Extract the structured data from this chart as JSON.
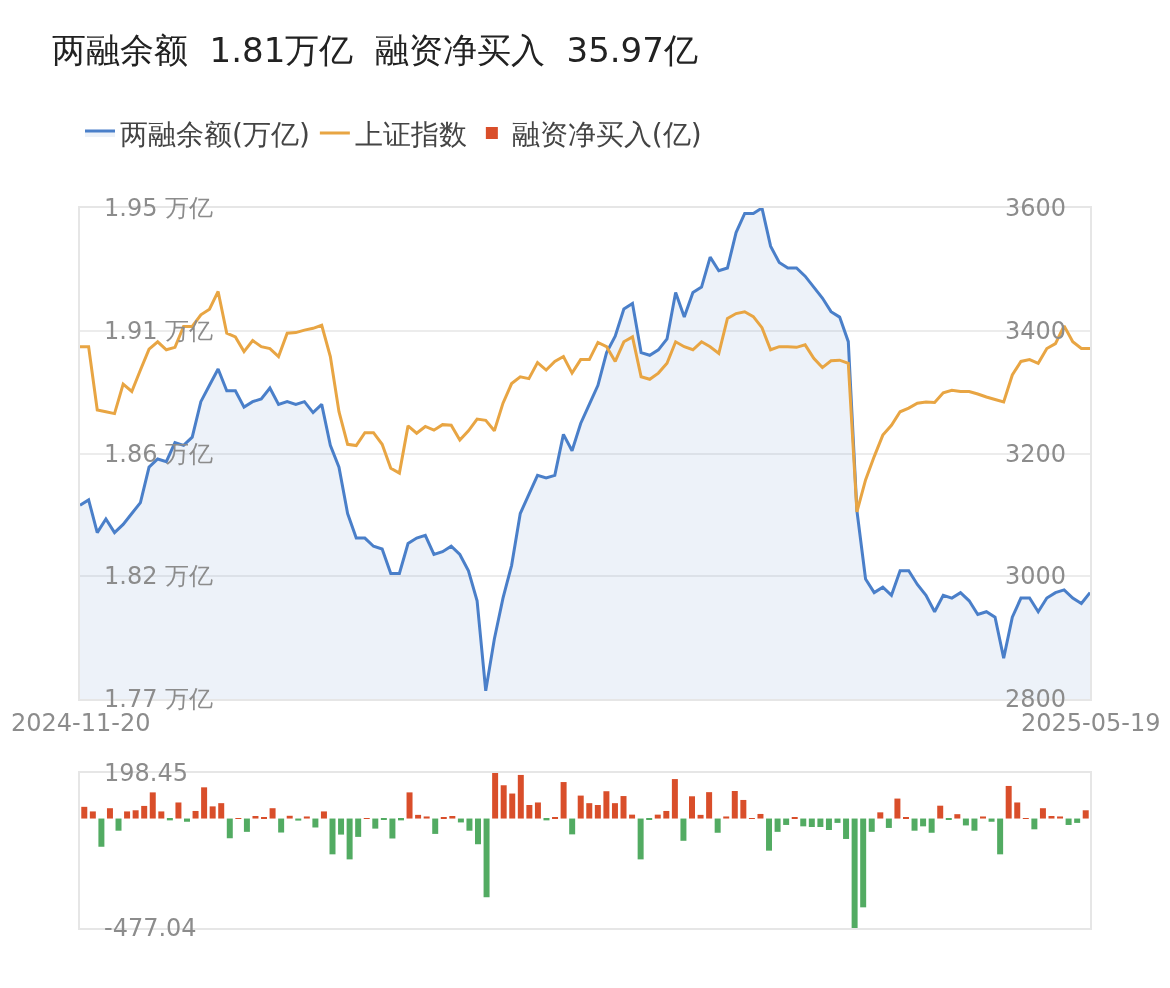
{
  "chart_data": [
    {
      "type": "line",
      "title": "两融余额  1.81万亿  融资净买入  35.97亿",
      "categories": [
        "2024-11-20",
        null,
        null,
        null,
        null,
        null,
        null,
        null,
        null,
        null,
        null,
        null,
        null,
        null,
        null,
        null,
        null,
        null,
        null,
        null,
        null,
        null,
        null,
        null,
        null,
        null,
        null,
        null,
        null,
        null,
        null,
        null,
        null,
        null,
        null,
        null,
        null,
        null,
        null,
        null,
        null,
        null,
        null,
        null,
        null,
        null,
        null,
        null,
        null,
        null,
        null,
        null,
        null,
        null,
        null,
        null,
        null,
        null,
        null,
        null,
        null,
        null,
        null,
        null,
        null,
        null,
        null,
        null,
        null,
        null,
        null,
        null,
        null,
        null,
        null,
        null,
        null,
        null,
        null,
        null,
        null,
        null,
        null,
        null,
        null,
        null,
        null,
        null,
        null,
        null,
        null,
        null,
        null,
        null,
        null,
        null,
        null,
        null,
        null,
        null,
        null,
        null,
        null,
        null,
        null,
        null,
        null,
        null,
        null,
        null,
        null,
        null,
        null,
        null,
        null,
        null,
        null,
        "2025-05-19"
      ],
      "series": [
        {
          "name": "两融余额(万亿)",
          "type": "area",
          "color": "#4a7fc9",
          "values": [
            1.841,
            1.843,
            1.831,
            1.836,
            1.831,
            1.834,
            1.838,
            1.842,
            1.855,
            1.858,
            1.857,
            1.864,
            1.863,
            1.866,
            1.879,
            1.885,
            1.891,
            1.883,
            1.883,
            1.877,
            1.879,
            1.88,
            1.884,
            1.878,
            1.879,
            1.878,
            1.879,
            1.875,
            1.878,
            1.863,
            1.855,
            1.838,
            1.829,
            1.829,
            1.826,
            1.825,
            1.816,
            1.816,
            1.827,
            1.829,
            1.83,
            1.823,
            1.824,
            1.826,
            1.823,
            1.817,
            1.806,
            1.773,
            1.792,
            1.807,
            1.819,
            1.838,
            1.845,
            1.852,
            1.851,
            1.852,
            1.867,
            1.861,
            1.871,
            1.878,
            1.885,
            1.897,
            1.903,
            1.913,
            1.915,
            1.897,
            1.896,
            1.898,
            1.902,
            1.919,
            1.91,
            1.919,
            1.921,
            1.932,
            1.927,
            1.928,
            1.941,
            1.948,
            1.948,
            1.95,
            1.936,
            1.93,
            1.928,
            1.928,
            1.925,
            1.921,
            1.917,
            1.912,
            1.91,
            1.901,
            1.839,
            1.814,
            1.809,
            1.811,
            1.808,
            1.817,
            1.817,
            1.812,
            1.808,
            1.802,
            1.808,
            1.807,
            1.809,
            1.806,
            1.801,
            1.802,
            1.8,
            1.785,
            1.8,
            1.807,
            1.807,
            1.802,
            1.807,
            1.809,
            1.81,
            1.807,
            1.805,
            1.809
          ]
        },
        {
          "name": "上证指数",
          "type": "line",
          "axis": "y2",
          "color": "#e8a543",
          "values": [
            3374,
            3374,
            3271,
            3268,
            3265,
            3313,
            3301,
            3336,
            3370,
            3382,
            3369,
            3373,
            3407,
            3407,
            3426,
            3435,
            3464,
            3396,
            3390,
            3366,
            3384,
            3374,
            3371,
            3358,
            3396,
            3397,
            3401,
            3404,
            3409,
            3358,
            3268,
            3215,
            3213,
            3234,
            3234,
            3215,
            3176,
            3168,
            3245,
            3233,
            3244,
            3238,
            3247,
            3246,
            3222,
            3237,
            3256,
            3254,
            3237,
            3282,
            3314,
            3325,
            3322,
            3348,
            3336,
            3350,
            3358,
            3331,
            3353,
            3353,
            3381,
            3374,
            3350,
            3382,
            3390,
            3325,
            3321,
            3331,
            3347,
            3382,
            3374,
            3369,
            3382,
            3374,
            3363,
            3420,
            3428,
            3431,
            3423,
            3405,
            3369,
            3374,
            3374,
            3373,
            3377,
            3355,
            3340,
            3351,
            3352,
            3347,
            3105,
            3157,
            3195,
            3230,
            3246,
            3268,
            3274,
            3282,
            3284,
            3283,
            3299,
            3303,
            3301,
            3301,
            3297,
            3292,
            3288,
            3284,
            3328,
            3350,
            3353,
            3347,
            3371,
            3379,
            3408,
            3382,
            3371,
            3371
          ]
        }
      ],
      "ylim": [
        1.77,
        1.95
      ],
      "yticks": [
        {
          "value": 1.95,
          "label": "1.95 万亿"
        },
        {
          "value": 1.905,
          "label": "1.91 万亿"
        },
        {
          "value": 1.86,
          "label": "1.86 万亿"
        },
        {
          "value": 1.815,
          "label": "1.82 万亿"
        },
        {
          "value": 1.77,
          "label": "1.77 万亿"
        }
      ],
      "y2lim": [
        2800,
        3600
      ],
      "y2ticks": [
        2800,
        3000,
        3200,
        3400,
        3600
      ],
      "grid": "y",
      "legend": "top left",
      "marker": "none",
      "line_style": "solid"
    },
    {
      "type": "bar",
      "categories": [
        null,
        null,
        null,
        null,
        null,
        null,
        null,
        null,
        null,
        null,
        null,
        null,
        null,
        null,
        null,
        null,
        null,
        null,
        null,
        null,
        null,
        null,
        null,
        null,
        null,
        null,
        null,
        null,
        null,
        null,
        null,
        null,
        null,
        null,
        null,
        null,
        null,
        null,
        null,
        null,
        null,
        null,
        null,
        null,
        null,
        null,
        null,
        null,
        null,
        null,
        null,
        null,
        null,
        null,
        null,
        null,
        null,
        null,
        null,
        null,
        null,
        null,
        null,
        null,
        null,
        null,
        null,
        null,
        null,
        null,
        null,
        null,
        null,
        null,
        null,
        null,
        null,
        null,
        null,
        null,
        null,
        null,
        null,
        null,
        null,
        null,
        null,
        null,
        null,
        null,
        null,
        null,
        null,
        null,
        null,
        null,
        null,
        null,
        null,
        null,
        null,
        null,
        null,
        null,
        null,
        null,
        null,
        null,
        null,
        null,
        null,
        null,
        null,
        null,
        null,
        null,
        null,
        null
      ],
      "series": [
        {
          "name": "融资净买入(亿)",
          "values": [
            51,
            31,
            -123,
            45,
            -53,
            31,
            36,
            55,
            114,
            31,
            -8,
            70,
            -14,
            33,
            136,
            53,
            67,
            -86,
            2,
            -58,
            11,
            6,
            45,
            -61,
            12,
            -9,
            9,
            -39,
            31,
            -156,
            -70,
            -178,
            -80,
            2,
            -44,
            -3,
            -87,
            -8,
            114,
            16,
            9,
            -67,
            6,
            11,
            -17,
            -53,
            -112,
            -343,
            198.45,
            145,
            109,
            190,
            59,
            70,
            -8,
            5,
            159,
            -69,
            100,
            67,
            59,
            119,
            67,
            98,
            17,
            -178,
            -6,
            17,
            33,
            172,
            -97,
            97,
            16,
            115,
            -62,
            9,
            120,
            81,
            2,
            20,
            -140,
            -58,
            -28,
            5,
            -34,
            -37,
            -37,
            -50,
            -19,
            -89,
            -477.04,
            -387,
            -58,
            27,
            -41,
            87,
            3,
            -53,
            -34,
            -62,
            56,
            -5,
            19,
            -30,
            -53,
            9,
            -14,
            -156,
            142,
            70,
            1,
            -47,
            45,
            11,
            9,
            -28,
            -19,
            35.97
          ],
          "colors": [
            "#d94e2a",
            "#d94e2a",
            "#52ab62",
            "#d94e2a",
            "#52ab62",
            "#d94e2a",
            "#d94e2a",
            "#d94e2a",
            "#d94e2a",
            "#d94e2a",
            "#52ab62",
            "#d94e2a",
            "#52ab62",
            "#d94e2a",
            "#d94e2a",
            "#d94e2a",
            "#d94e2a",
            "#52ab62",
            "#d94e2a",
            "#52ab62",
            "#d94e2a",
            "#d94e2a",
            "#d94e2a",
            "#52ab62",
            "#d94e2a",
            "#52ab62",
            "#d94e2a",
            "#52ab62",
            "#d94e2a",
            "#52ab62",
            "#52ab62",
            "#52ab62",
            "#52ab62",
            "#d94e2a",
            "#52ab62",
            "#52ab62",
            "#52ab62",
            "#52ab62",
            "#d94e2a",
            "#d94e2a",
            "#d94e2a",
            "#52ab62",
            "#d94e2a",
            "#d94e2a",
            "#52ab62",
            "#52ab62",
            "#52ab62",
            "#52ab62",
            "#d94e2a",
            "#d94e2a",
            "#d94e2a",
            "#d94e2a",
            "#d94e2a",
            "#d94e2a",
            "#52ab62",
            "#d94e2a",
            "#d94e2a",
            "#52ab62",
            "#d94e2a",
            "#d94e2a",
            "#d94e2a",
            "#d94e2a",
            "#d94e2a",
            "#d94e2a",
            "#d94e2a",
            "#52ab62",
            "#52ab62",
            "#d94e2a",
            "#d94e2a",
            "#d94e2a",
            "#52ab62",
            "#d94e2a",
            "#d94e2a",
            "#d94e2a",
            "#52ab62",
            "#d94e2a",
            "#d94e2a",
            "#d94e2a",
            "#d94e2a",
            "#d94e2a",
            "#52ab62",
            "#52ab62",
            "#52ab62",
            "#d94e2a",
            "#52ab62",
            "#52ab62",
            "#52ab62",
            "#52ab62",
            "#52ab62",
            "#52ab62",
            "#52ab62",
            "#52ab62",
            "#52ab62",
            "#d94e2a",
            "#52ab62",
            "#d94e2a",
            "#d94e2a",
            "#52ab62",
            "#52ab62",
            "#52ab62",
            "#d94e2a",
            "#52ab62",
            "#d94e2a",
            "#52ab62",
            "#52ab62",
            "#d94e2a",
            "#52ab62",
            "#52ab62",
            "#d94e2a",
            "#d94e2a",
            "#d94e2a",
            "#52ab62",
            "#d94e2a",
            "#d94e2a",
            "#d94e2a",
            "#52ab62",
            "#52ab62",
            "#d94e2a"
          ]
        }
      ],
      "ylim": [
        -477.04,
        198.45
      ],
      "yticks": [
        198.45,
        -477.04
      ],
      "legend": "top left"
    }
  ]
}
